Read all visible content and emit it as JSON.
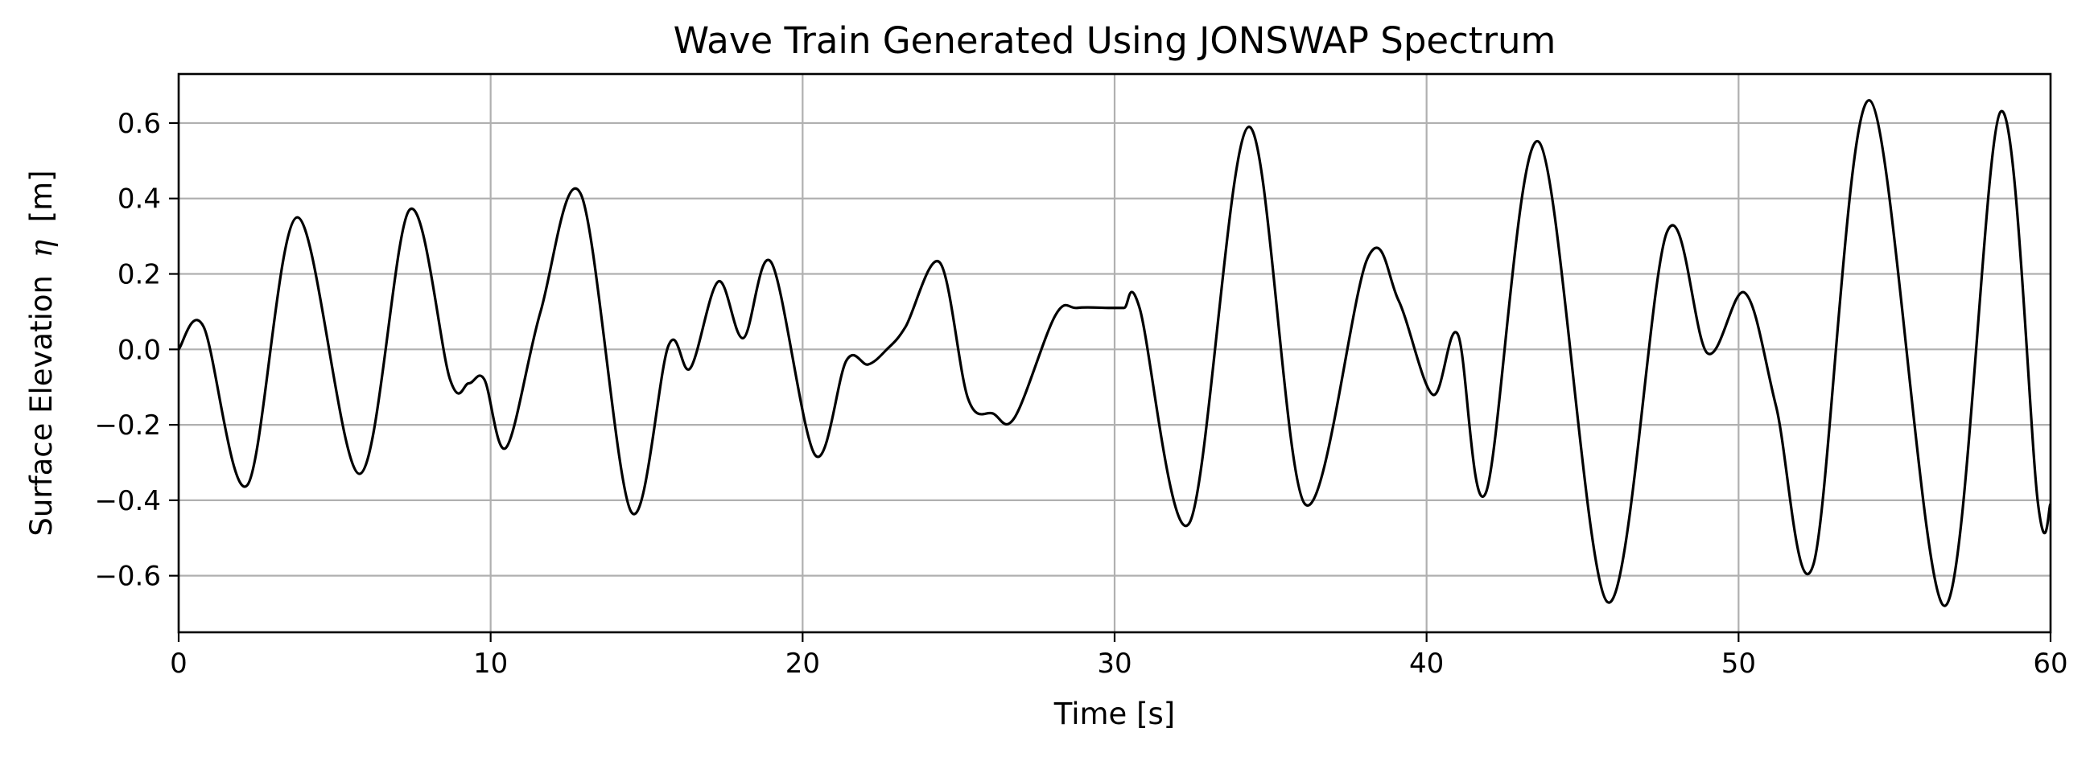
{
  "chart_data": {
    "type": "line",
    "title": "Wave Train Generated Using JONSWAP Spectrum",
    "xlabel": "Time [s]",
    "ylabel": "Surface Elevation",
    "ylabel_symbol": "η",
    "ylabel_unit": "[m]",
    "xlim": [
      0,
      60
    ],
    "ylim": [
      -0.75,
      0.73
    ],
    "xticks": [
      0,
      10,
      20,
      30,
      40,
      50,
      60
    ],
    "xtick_labels": [
      "0",
      "10",
      "20",
      "30",
      "40",
      "50",
      "60"
    ],
    "yticks": [
      -0.6,
      -0.4,
      -0.2,
      0.0,
      0.2,
      0.4,
      0.6
    ],
    "ytick_labels": [
      "−0.6",
      "−0.4",
      "−0.2",
      "0.0",
      "0.2",
      "0.4",
      "0.6"
    ],
    "grid": true,
    "line_color": "#000000",
    "grid_color": "#b0b0b0",
    "series": [
      {
        "x": [
          0,
          0.8,
          2.2,
          3.8,
          5.8,
          7.4,
          8.7,
          9.3,
          9.8,
          10.5,
          11.6,
          12.9,
          14.5,
          15.7,
          16.4,
          17.3,
          18.1,
          19.0,
          20.4,
          21.4,
          22.1,
          22.7,
          23.3,
          24.4,
          25.3,
          26.1,
          26.8,
          28.1,
          28.8,
          29.8,
          30.3,
          30.8,
          32.4,
          34.3,
          36.1,
          38.1,
          39.1,
          40.2,
          41.0,
          41.9,
          43.6,
          45.8,
          47.7,
          49.0,
          50.2,
          51.2,
          52.4,
          54.2,
          56.6,
          58.4,
          59.6,
          60.0
        ],
        "y": [
          0.0,
          0.06,
          -0.36,
          0.35,
          -0.33,
          0.37,
          -0.08,
          -0.09,
          -0.08,
          -0.26,
          0.1,
          0.41,
          -0.43,
          0.01,
          -0.05,
          0.18,
          0.03,
          0.23,
          -0.28,
          -0.03,
          -0.04,
          0.0,
          0.06,
          0.23,
          -0.13,
          -0.17,
          -0.18,
          0.09,
          0.11,
          0.11,
          0.11,
          0.11,
          -0.46,
          0.59,
          -0.41,
          0.24,
          0.13,
          -0.12,
          0.04,
          -0.38,
          0.55,
          -0.67,
          0.31,
          -0.01,
          0.15,
          -0.15,
          -0.57,
          0.66,
          -0.68,
          0.63,
          -0.41,
          -0.41
        ]
      }
    ]
  }
}
